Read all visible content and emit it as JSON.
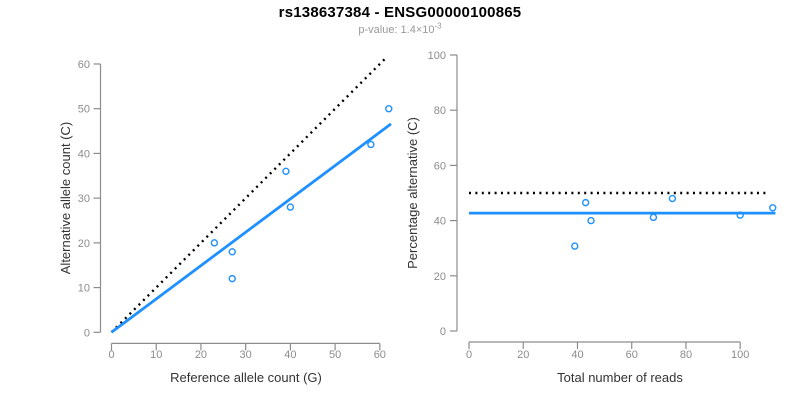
{
  "header": {
    "title": "rs138637384 - ENSG00000100865",
    "p_value": {
      "text": "p-value: 1.4×10",
      "exponent": "-3"
    }
  },
  "colors": {
    "accent_blue": "#1E90FF",
    "reference_black": "#000000",
    "axis_gray": "#8c8c8c",
    "axis_title_color": "#333333"
  },
  "chart_data": [
    {
      "type": "scatter",
      "name": "allele-counts-plot",
      "title": "",
      "xlabel": "Reference allele count (G)",
      "ylabel": "Alternative allele count (C)",
      "xlim": [
        0,
        62
      ],
      "ylim": [
        0,
        62
      ],
      "grid": false,
      "xticks": [
        0,
        10,
        20,
        30,
        40,
        50,
        60
      ],
      "yticks": [
        0,
        10,
        20,
        30,
        40,
        50,
        60
      ],
      "point_color": "#1E90FF",
      "points": [
        {
          "x": 23,
          "y": 20
        },
        {
          "x": 27,
          "y": 18
        },
        {
          "x": 27,
          "y": 12
        },
        {
          "x": 39,
          "y": 36
        },
        {
          "x": 40,
          "y": 28
        },
        {
          "x": 58,
          "y": 42
        },
        {
          "x": 62,
          "y": 50
        }
      ],
      "lines": [
        {
          "name": "identity-line",
          "style": "dotted",
          "color": "#000000",
          "x1": 0,
          "y1": 0,
          "x2": 61.3,
          "y2": 61.3
        },
        {
          "name": "regression-line",
          "style": "solid",
          "color": "#1E90FF",
          "x1": 0,
          "y1": 0,
          "x2": 62.5,
          "y2": 46.6
        }
      ]
    },
    {
      "type": "scatter",
      "name": "percentage-vs-reads-plot",
      "title": "",
      "xlabel": "Total number of reads",
      "ylabel": "Percentage alternative (C)",
      "xlim": [
        0,
        113
      ],
      "ylim": [
        0,
        100
      ],
      "grid": false,
      "xticks": [
        0,
        20,
        40,
        60,
        80,
        100
      ],
      "yticks": [
        0,
        20,
        40,
        60,
        80,
        100
      ],
      "point_color": "#1E90FF",
      "points": [
        {
          "x": 39,
          "y": 30.77
        },
        {
          "x": 43,
          "y": 46.51
        },
        {
          "x": 45,
          "y": 40.0
        },
        {
          "x": 68,
          "y": 41.18
        },
        {
          "x": 75,
          "y": 48.0
        },
        {
          "x": 100,
          "y": 42.0
        },
        {
          "x": 112,
          "y": 44.64
        }
      ],
      "lines": [
        {
          "name": "expected-50pct-line",
          "style": "dotted",
          "color": "#000000",
          "x1": 0,
          "y1": 50,
          "x2": 110,
          "y2": 50
        },
        {
          "name": "mean-percentage-line",
          "style": "solid",
          "color": "#1E90FF",
          "x1": 0,
          "y1": 42.7,
          "x2": 113,
          "y2": 42.7
        }
      ]
    }
  ]
}
